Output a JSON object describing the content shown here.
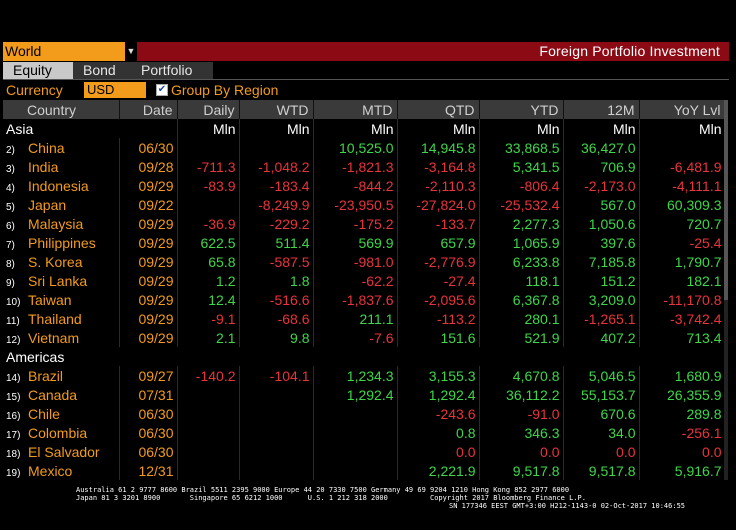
{
  "header": {
    "region_value": "World",
    "title": "Foreign Portfolio Investment"
  },
  "tabs": [
    {
      "label": "Equity",
      "active": true
    },
    {
      "label": "Bond",
      "active": false
    },
    {
      "label": "Portfolio",
      "active": false
    }
  ],
  "options": {
    "currency_label": "Currency",
    "currency_value": "USD",
    "group_label": "Group By Region",
    "group_checked": true
  },
  "columns": [
    "Country",
    "Date",
    "Daily",
    "WTD",
    "MTD",
    "QTD",
    "YTD",
    "12M",
    "YoY Lvl"
  ],
  "unit": "Mln",
  "groups": [
    {
      "region": "Asia",
      "rows": [
        {
          "idx": "2)",
          "country": "China",
          "date": "06/30",
          "values": [
            "",
            "",
            "10,525.0",
            "14,945.8",
            "33,868.5",
            "36,427.0",
            ""
          ]
        },
        {
          "idx": "3)",
          "country": "India",
          "date": "09/28",
          "values": [
            "-711.3",
            "-1,048.2",
            "-1,821.3",
            "-3,164.8",
            "5,341.5",
            "706.9",
            "-6,481.9"
          ]
        },
        {
          "idx": "4)",
          "country": "Indonesia",
          "date": "09/29",
          "values": [
            "-83.9",
            "-183.4",
            "-844.2",
            "-2,110.3",
            "-806.4",
            "-2,173.0",
            "-4,111.1"
          ]
        },
        {
          "idx": "5)",
          "country": "Japan",
          "date": "09/22",
          "values": [
            "",
            "-8,249.9",
            "-23,950.5",
            "-27,824.0",
            "-25,532.4",
            "567.0",
            "60,309.3"
          ]
        },
        {
          "idx": "6)",
          "country": "Malaysia",
          "date": "09/29",
          "values": [
            "-36.9",
            "-229.2",
            "-175.2",
            "-133.7",
            "2,277.3",
            "1,050.6",
            "720.7"
          ]
        },
        {
          "idx": "7)",
          "country": "Philippines",
          "date": "09/29",
          "values": [
            "622.5",
            "511.4",
            "569.9",
            "657.9",
            "1,065.9",
            "397.6",
            "-25.4"
          ]
        },
        {
          "idx": "8)",
          "country": "S. Korea",
          "date": "09/29",
          "values": [
            "65.8",
            "-587.5",
            "-981.0",
            "-2,776.9",
            "6,233.8",
            "7,185.8",
            "1,790.7"
          ]
        },
        {
          "idx": "9)",
          "country": "Sri Lanka",
          "date": "09/29",
          "values": [
            "1.2",
            "1.8",
            "-62.2",
            "-27.4",
            "118.1",
            "151.2",
            "182.1"
          ]
        },
        {
          "idx": "10)",
          "country": "Taiwan",
          "date": "09/29",
          "values": [
            "12.4",
            "-516.6",
            "-1,837.6",
            "-2,095.6",
            "6,367.8",
            "3,209.0",
            "-11,170.8"
          ]
        },
        {
          "idx": "11)",
          "country": "Thailand",
          "date": "09/29",
          "values": [
            "-9.1",
            "-68.6",
            "211.1",
            "-113.2",
            "280.1",
            "-1,265.1",
            "-3,742.4"
          ]
        },
        {
          "idx": "12)",
          "country": "Vietnam",
          "date": "09/29",
          "values": [
            "2.1",
            "9.8",
            "-7.6",
            "151.6",
            "521.9",
            "407.2",
            "713.4"
          ]
        }
      ]
    },
    {
      "region": "Americas",
      "rows": [
        {
          "idx": "14)",
          "country": "Brazil",
          "date": "09/27",
          "values": [
            "-140.2",
            "-104.1",
            "1,234.3",
            "3,155.3",
            "4,670.8",
            "5,046.5",
            "1,680.9"
          ]
        },
        {
          "idx": "15)",
          "country": "Canada",
          "date": "07/31",
          "values": [
            "",
            "",
            "1,292.4",
            "1,292.4",
            "36,112.2",
            "55,153.7",
            "26,355.9"
          ]
        },
        {
          "idx": "16)",
          "country": "Chile",
          "date": "06/30",
          "values": [
            "",
            "",
            "",
            "-243.6",
            "-91.0",
            "670.6",
            "289.8"
          ]
        },
        {
          "idx": "17)",
          "country": "Colombia",
          "date": "06/30",
          "values": [
            "",
            "",
            "",
            "0.8",
            "346.3",
            "34.0",
            "-256.1"
          ]
        },
        {
          "idx": "18)",
          "country": "El Salvador",
          "date": "06/30",
          "values": [
            "",
            "",
            "",
            "0.0",
            "0.0",
            "0.0",
            "0.0"
          ]
        },
        {
          "idx": "19)",
          "country": "Mexico",
          "date": "12/31",
          "values": [
            "",
            "",
            "",
            "2,221.9",
            "9,517.8",
            "9,517.8",
            "5,916.7"
          ]
        }
      ]
    }
  ],
  "footer": {
    "line1": "Australia 61 2 9777 8600 Brazil 5511 2395 9000 Europe 44 20 7330 7500 Germany 49 69 9204 1210 Hong Kong 852 2977 6000",
    "line2": "Japan 81 3 3201 8900       Singapore 65 6212 1000      U.S. 1 212 318 2000          Copyright 2017 Bloomberg Finance L.P.",
    "line3": "SN 177346 EEST GMT+3:00 H212-1143-0 02-Oct-2017 10:46:55"
  },
  "colors": {
    "accent": "#f39b1b",
    "header_bar": "#8b0a14",
    "positive": "#3fd64a",
    "negative": "#e8343b"
  }
}
